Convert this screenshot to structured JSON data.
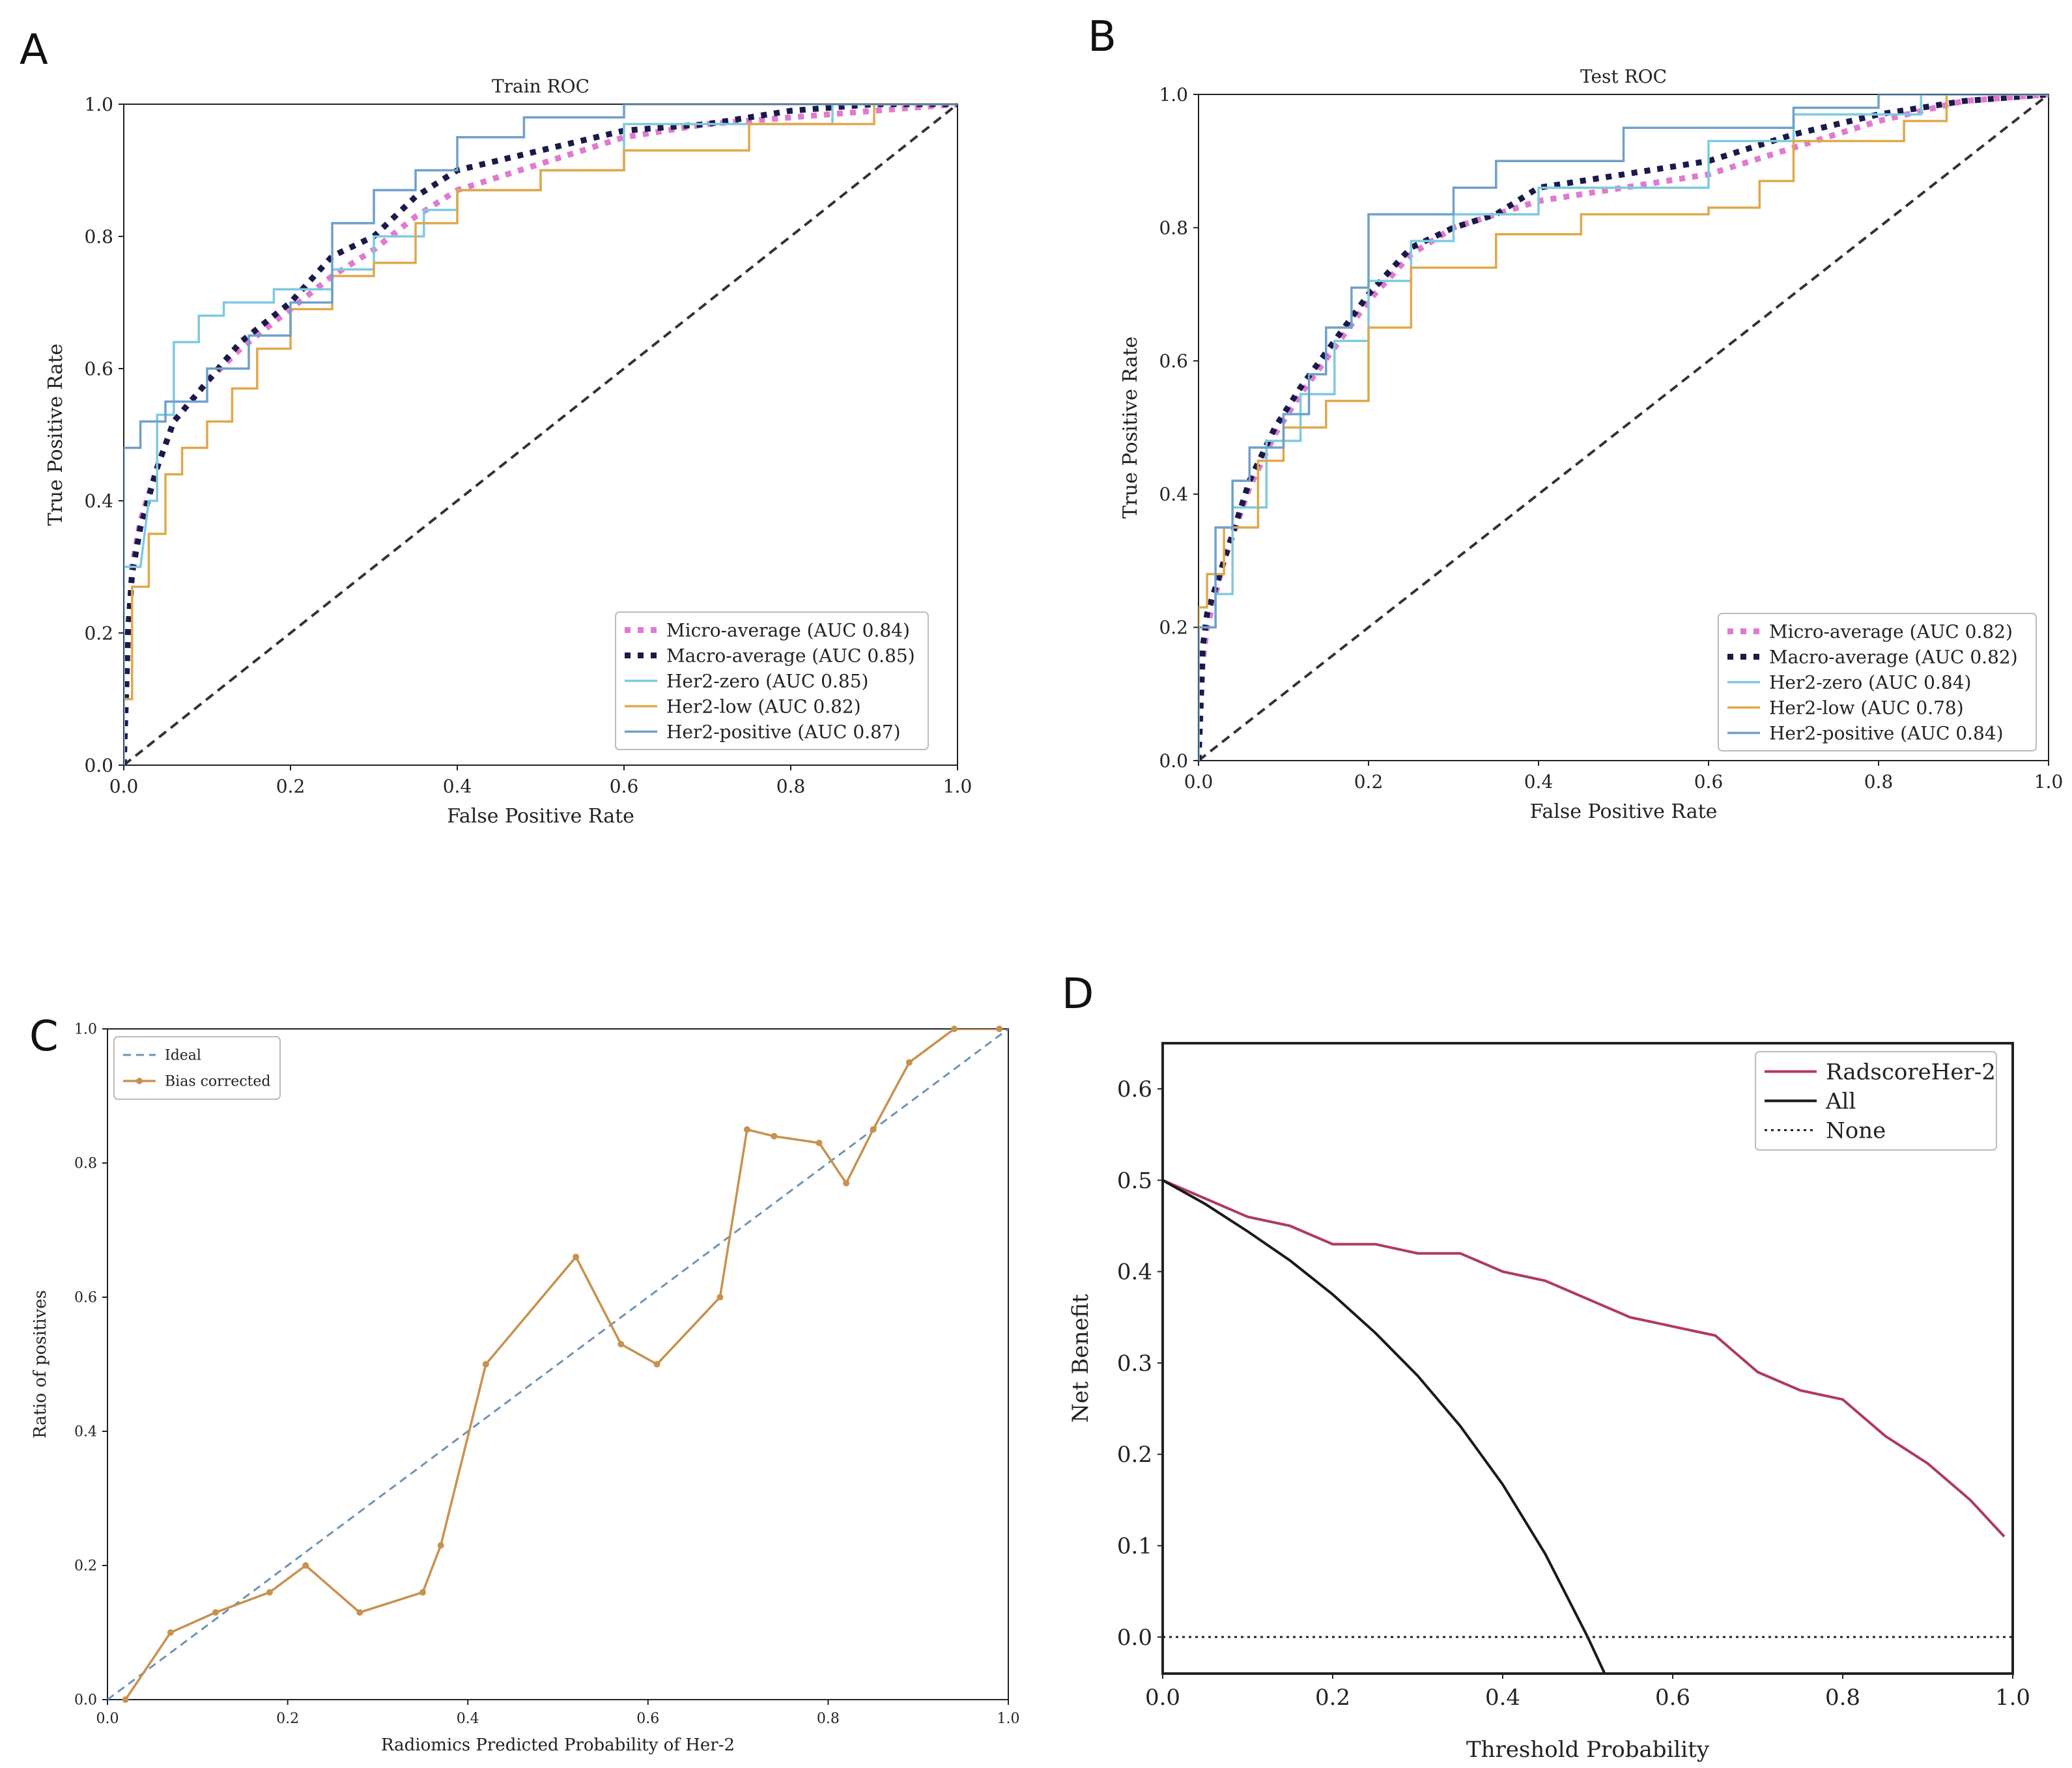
{
  "panels": {
    "A": {
      "letter": "A"
    },
    "B": {
      "letter": "B"
    },
    "C": {
      "letter": "C"
    },
    "D": {
      "letter": "D"
    }
  },
  "colors": {
    "micro": "#e07ad0",
    "macro": "#1a1a4a",
    "zero": "#7ecae0",
    "low": "#e0a84a",
    "positive": "#6fa0cc",
    "diag": "#333333",
    "ideal": "#6e93b5",
    "bias": "#c8914e",
    "radscore": "#b03a5a",
    "all": "#1a1a1a",
    "none": "#222222"
  },
  "chart_data": [
    {
      "id": "A",
      "type": "line",
      "title": "Train ROC",
      "xlabel": "False Positive Rate",
      "ylabel": "True Positive Rate",
      "xlim": [
        0,
        1
      ],
      "ylim": [
        0,
        1
      ],
      "xticks": [
        "0.0",
        "0.2",
        "0.4",
        "0.6",
        "0.8",
        "1.0"
      ],
      "yticks": [
        "0.0",
        "0.2",
        "0.4",
        "0.6",
        "0.8",
        "1.0"
      ],
      "legend_position": "bottom-right",
      "series": [
        {
          "name": "Micro-average (AUC 0.84)",
          "key": "micro",
          "style": "dotted-thick",
          "x": [
            0,
            0.005,
            0.01,
            0.02,
            0.04,
            0.06,
            0.1,
            0.14,
            0.2,
            0.25,
            0.3,
            0.35,
            0.4,
            0.5,
            0.6,
            0.7,
            0.8,
            0.9,
            1.0
          ],
          "y": [
            0,
            0.18,
            0.3,
            0.37,
            0.45,
            0.52,
            0.58,
            0.63,
            0.69,
            0.74,
            0.78,
            0.83,
            0.87,
            0.91,
            0.95,
            0.97,
            0.98,
            0.99,
            1.0
          ]
        },
        {
          "name": "Macro-average (AUC 0.85)",
          "key": "macro",
          "style": "dotted-thick",
          "x": [
            0,
            0.005,
            0.01,
            0.02,
            0.04,
            0.06,
            0.1,
            0.14,
            0.2,
            0.25,
            0.3,
            0.35,
            0.4,
            0.5,
            0.6,
            0.7,
            0.8,
            0.9,
            1.0
          ],
          "y": [
            0,
            0.2,
            0.29,
            0.36,
            0.45,
            0.52,
            0.58,
            0.64,
            0.7,
            0.77,
            0.8,
            0.86,
            0.9,
            0.93,
            0.96,
            0.97,
            0.99,
            1.0,
            1.0
          ]
        },
        {
          "name": "Her2-zero (AUC 0.85)",
          "key": "zero",
          "style": "solid",
          "x": [
            0,
            0,
            0.02,
            0.03,
            0.04,
            0.04,
            0.06,
            0.06,
            0.09,
            0.09,
            0.12,
            0.12,
            0.18,
            0.18,
            0.25,
            0.25,
            0.3,
            0.3,
            0.36,
            0.36,
            0.4,
            0.4,
            0.5,
            0.5,
            0.6,
            0.6,
            0.85,
            0.85,
            1.0
          ],
          "y": [
            0,
            0.3,
            0.3,
            0.4,
            0.4,
            0.53,
            0.53,
            0.64,
            0.64,
            0.68,
            0.68,
            0.7,
            0.7,
            0.72,
            0.72,
            0.75,
            0.75,
            0.8,
            0.8,
            0.84,
            0.84,
            0.87,
            0.87,
            0.9,
            0.9,
            0.97,
            0.97,
            1.0,
            1.0
          ]
        },
        {
          "name": "Her2-low (AUC 0.82)",
          "key": "low",
          "style": "solid",
          "x": [
            0,
            0,
            0.01,
            0.01,
            0.03,
            0.03,
            0.05,
            0.05,
            0.07,
            0.07,
            0.1,
            0.1,
            0.13,
            0.13,
            0.16,
            0.16,
            0.2,
            0.2,
            0.25,
            0.25,
            0.3,
            0.3,
            0.35,
            0.35,
            0.4,
            0.4,
            0.5,
            0.5,
            0.6,
            0.6,
            0.75,
            0.75,
            0.9,
            0.9,
            1.0
          ],
          "y": [
            0,
            0.1,
            0.1,
            0.27,
            0.27,
            0.35,
            0.35,
            0.44,
            0.44,
            0.48,
            0.48,
            0.52,
            0.52,
            0.57,
            0.57,
            0.63,
            0.63,
            0.69,
            0.69,
            0.74,
            0.74,
            0.76,
            0.76,
            0.82,
            0.82,
            0.87,
            0.87,
            0.9,
            0.9,
            0.93,
            0.93,
            0.97,
            0.97,
            1.0,
            1.0
          ]
        },
        {
          "name": "Her2-positive (AUC 0.87)",
          "key": "positive",
          "style": "solid",
          "x": [
            0,
            0,
            0.02,
            0.02,
            0.05,
            0.05,
            0.1,
            0.1,
            0.15,
            0.15,
            0.2,
            0.2,
            0.25,
            0.25,
            0.3,
            0.3,
            0.35,
            0.35,
            0.4,
            0.4,
            0.48,
            0.48,
            0.6,
            0.6,
            1.0
          ],
          "y": [
            0,
            0.48,
            0.48,
            0.52,
            0.52,
            0.55,
            0.55,
            0.6,
            0.6,
            0.65,
            0.65,
            0.7,
            0.7,
            0.82,
            0.82,
            0.87,
            0.87,
            0.9,
            0.9,
            0.95,
            0.95,
            0.98,
            0.98,
            1.0,
            1.0
          ]
        }
      ]
    },
    {
      "id": "B",
      "type": "line",
      "title": "Test ROC",
      "xlabel": "False Positive Rate",
      "ylabel": "True Positive Rate",
      "xlim": [
        0,
        1
      ],
      "ylim": [
        0,
        1
      ],
      "xticks": [
        "0.0",
        "0.2",
        "0.4",
        "0.6",
        "0.8",
        "1.0"
      ],
      "yticks": [
        "0.0",
        "0.2",
        "0.4",
        "0.6",
        "0.8",
        "1.0"
      ],
      "legend_position": "bottom-right",
      "series": [
        {
          "name": "Micro-average (AUC 0.82)",
          "key": "micro",
          "style": "dotted-thick",
          "x": [
            0,
            0.005,
            0.01,
            0.03,
            0.06,
            0.09,
            0.12,
            0.16,
            0.2,
            0.25,
            0.3,
            0.35,
            0.4,
            0.5,
            0.6,
            0.7,
            0.8,
            0.9,
            1.0
          ],
          "y": [
            0,
            0.15,
            0.2,
            0.3,
            0.41,
            0.49,
            0.55,
            0.62,
            0.69,
            0.76,
            0.8,
            0.82,
            0.84,
            0.86,
            0.88,
            0.92,
            0.96,
            0.99,
            1.0
          ]
        },
        {
          "name": "Macro-average (AUC 0.82)",
          "key": "macro",
          "style": "dotted-thick",
          "x": [
            0,
            0.005,
            0.01,
            0.03,
            0.06,
            0.09,
            0.12,
            0.16,
            0.2,
            0.25,
            0.3,
            0.35,
            0.4,
            0.5,
            0.6,
            0.7,
            0.8,
            0.9,
            1.0
          ],
          "y": [
            0,
            0.17,
            0.22,
            0.3,
            0.42,
            0.5,
            0.56,
            0.63,
            0.7,
            0.77,
            0.8,
            0.82,
            0.86,
            0.88,
            0.9,
            0.94,
            0.97,
            0.99,
            1.0
          ]
        },
        {
          "name": "Her2-zero (AUC 0.84)",
          "key": "zero",
          "style": "solid",
          "x": [
            0,
            0,
            0.02,
            0.02,
            0.04,
            0.04,
            0.08,
            0.08,
            0.12,
            0.12,
            0.16,
            0.16,
            0.2,
            0.2,
            0.25,
            0.25,
            0.3,
            0.3,
            0.4,
            0.4,
            0.6,
            0.6,
            0.7,
            0.7,
            0.85,
            0.85,
            1.0
          ],
          "y": [
            0,
            0.2,
            0.2,
            0.25,
            0.25,
            0.38,
            0.38,
            0.48,
            0.48,
            0.55,
            0.55,
            0.63,
            0.63,
            0.72,
            0.72,
            0.78,
            0.78,
            0.82,
            0.82,
            0.86,
            0.86,
            0.93,
            0.93,
            0.97,
            0.97,
            1.0,
            1.0
          ]
        },
        {
          "name": "Her2-low (AUC 0.78)",
          "key": "low",
          "style": "solid",
          "x": [
            0,
            0,
            0.01,
            0.01,
            0.03,
            0.03,
            0.07,
            0.07,
            0.1,
            0.1,
            0.15,
            0.15,
            0.2,
            0.2,
            0.25,
            0.25,
            0.35,
            0.35,
            0.45,
            0.45,
            0.6,
            0.6,
            0.66,
            0.66,
            0.7,
            0.7,
            0.83,
            0.83,
            0.88,
            0.88,
            1.0
          ],
          "y": [
            0,
            0.23,
            0.23,
            0.28,
            0.28,
            0.35,
            0.35,
            0.45,
            0.45,
            0.5,
            0.5,
            0.54,
            0.54,
            0.65,
            0.65,
            0.74,
            0.74,
            0.79,
            0.79,
            0.82,
            0.82,
            0.83,
            0.83,
            0.87,
            0.87,
            0.93,
            0.93,
            0.96,
            0.96,
            1.0,
            1.0
          ]
        },
        {
          "name": "Her2-positive (AUC 0.84)",
          "key": "positive",
          "style": "solid",
          "x": [
            0,
            0,
            0.02,
            0.02,
            0.04,
            0.04,
            0.06,
            0.06,
            0.1,
            0.1,
            0.13,
            0.13,
            0.15,
            0.15,
            0.18,
            0.18,
            0.2,
            0.2,
            0.3,
            0.3,
            0.35,
            0.35,
            0.5,
            0.5,
            0.7,
            0.7,
            0.8,
            0.8,
            1.0
          ],
          "y": [
            0,
            0.2,
            0.2,
            0.35,
            0.35,
            0.42,
            0.42,
            0.47,
            0.47,
            0.52,
            0.52,
            0.58,
            0.58,
            0.65,
            0.65,
            0.71,
            0.71,
            0.82,
            0.82,
            0.86,
            0.86,
            0.9,
            0.9,
            0.95,
            0.95,
            0.98,
            0.98,
            1.0,
            1.0
          ]
        }
      ]
    },
    {
      "id": "C",
      "type": "line",
      "title": "",
      "xlabel": "Radiomics Predicted Probability of Her-2",
      "ylabel": "Ratio of positives",
      "xlim": [
        0,
        1
      ],
      "ylim": [
        0,
        1
      ],
      "xticks": [
        "0.0",
        "0.2",
        "0.4",
        "0.6",
        "0.8",
        "1.0"
      ],
      "yticks": [
        "0.0",
        "0.2",
        "0.4",
        "0.6",
        "0.8",
        "1.0"
      ],
      "legend_position": "top-left",
      "series": [
        {
          "name": "Ideal",
          "key": "ideal",
          "style": "dashed",
          "x": [
            0,
            1
          ],
          "y": [
            0,
            1
          ]
        },
        {
          "name": "Bias corrected",
          "key": "bias",
          "style": "solid-markers",
          "x": [
            0.02,
            0.07,
            0.12,
            0.18,
            0.22,
            0.28,
            0.35,
            0.37,
            0.42,
            0.52,
            0.57,
            0.61,
            0.68,
            0.71,
            0.74,
            0.79,
            0.82,
            0.85,
            0.89,
            0.94,
            0.99
          ],
          "y": [
            0.0,
            0.1,
            0.13,
            0.16,
            0.2,
            0.13,
            0.16,
            0.23,
            0.5,
            0.66,
            0.53,
            0.5,
            0.6,
            0.85,
            0.84,
            0.83,
            0.77,
            0.85,
            0.95,
            1.0,
            1.0
          ]
        }
      ]
    },
    {
      "id": "D",
      "type": "line",
      "title": "",
      "xlabel": "Threshold Probability",
      "ylabel": "Net Benefit",
      "xlim": [
        0,
        1
      ],
      "ylim": [
        -0.04,
        0.65
      ],
      "xticks": [
        "0.0",
        "0.2",
        "0.4",
        "0.6",
        "0.8",
        "1.0"
      ],
      "yticks": [
        "0.0",
        "0.1",
        "0.2",
        "0.3",
        "0.4",
        "0.5",
        "0.6"
      ],
      "legend_position": "top-right",
      "series": [
        {
          "name": "RadscoreHer-2",
          "key": "radscore",
          "style": "solid",
          "x": [
            0,
            0.05,
            0.1,
            0.15,
            0.2,
            0.25,
            0.3,
            0.35,
            0.4,
            0.45,
            0.5,
            0.55,
            0.6,
            0.65,
            0.7,
            0.75,
            0.8,
            0.85,
            0.9,
            0.95,
            0.99
          ],
          "y": [
            0.5,
            0.48,
            0.46,
            0.45,
            0.43,
            0.43,
            0.42,
            0.42,
            0.4,
            0.39,
            0.37,
            0.35,
            0.34,
            0.33,
            0.29,
            0.27,
            0.26,
            0.22,
            0.19,
            0.15,
            0.11
          ]
        },
        {
          "name": "All",
          "key": "all",
          "style": "solid",
          "x": [
            0,
            0.05,
            0.1,
            0.15,
            0.2,
            0.25,
            0.3,
            0.35,
            0.4,
            0.45,
            0.5,
            0.52
          ],
          "y": [
            0.5,
            0.474,
            0.444,
            0.412,
            0.375,
            0.333,
            0.286,
            0.231,
            0.167,
            0.091,
            0.0,
            -0.04
          ]
        },
        {
          "name": "None",
          "key": "none",
          "style": "dotted",
          "x": [
            0,
            1
          ],
          "y": [
            0,
            0
          ]
        }
      ]
    }
  ]
}
